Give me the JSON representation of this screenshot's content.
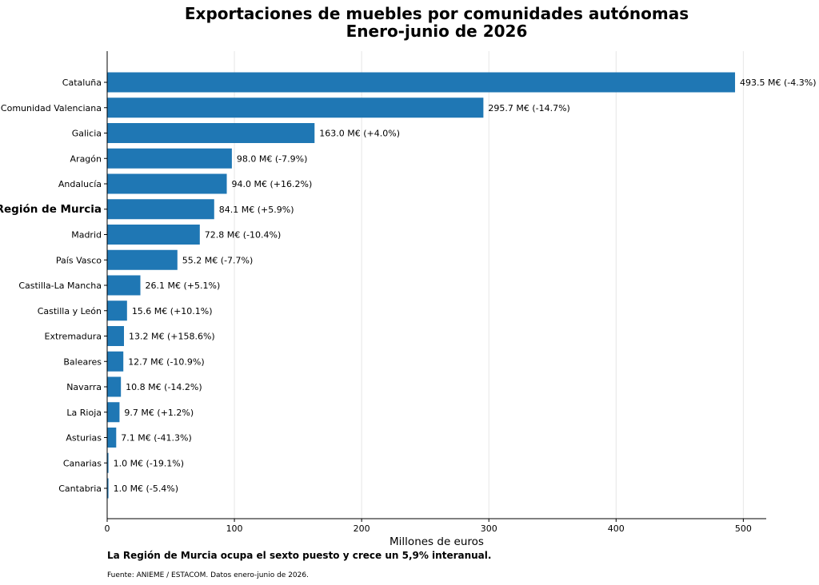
{
  "chart_data": {
    "type": "bar",
    "orientation": "horizontal",
    "title_line1": "Exportaciones de muebles por comunidades autónomas",
    "title_line2": "Enero-junio de 2026",
    "xlabel": "Millones de euros",
    "ylabel": "",
    "xlim": [
      0,
      518
    ],
    "xticks": [
      0,
      100,
      200,
      300,
      400,
      500
    ],
    "grid": "vertical",
    "highlight_category": "Región de Murcia",
    "bar_color": "#1f77b4",
    "categories": [
      "Cataluña",
      "Comunidad Valenciana",
      "Galicia",
      "Aragón",
      "Andalucía",
      "Región de Murcia",
      "Madrid",
      "País Vasco",
      "Castilla-La Mancha",
      "Castilla y León",
      "Extremadura",
      "Baleares",
      "Navarra",
      "La Rioja",
      "Asturias",
      "Canarias",
      "Cantabria"
    ],
    "values": [
      493.5,
      295.7,
      163.0,
      98.0,
      94.0,
      84.1,
      72.8,
      55.2,
      26.1,
      15.6,
      13.2,
      12.7,
      10.8,
      9.7,
      7.1,
      1.0,
      1.0
    ],
    "value_labels": [
      "493.5 M€  (-4.3%)",
      "295.7 M€  (-14.7%)",
      "163.0 M€  (+4.0%)",
      "98.0 M€  (-7.9%)",
      "94.0 M€  (+16.2%)",
      "84.1 M€  (+5.9%)",
      "72.8 M€  (-10.4%)",
      "55.2 M€  (-7.7%)",
      "26.1 M€  (+5.1%)",
      "15.6 M€  (+10.1%)",
      "13.2 M€  (+158.6%)",
      "12.7 M€  (-10.9%)",
      "10.8 M€  (-14.2%)",
      "9.7 M€  (+1.2%)",
      "7.1 M€  (-41.3%)",
      "1.0 M€  (-19.1%)",
      "1.0 M€  (-5.4%)"
    ],
    "annotation": "La Región de Murcia ocupa el sexto puesto y crece un 5,9% interanual.",
    "source": "Fuente: ANIEME / ESTACOM. Datos enero-junio de 2026."
  }
}
